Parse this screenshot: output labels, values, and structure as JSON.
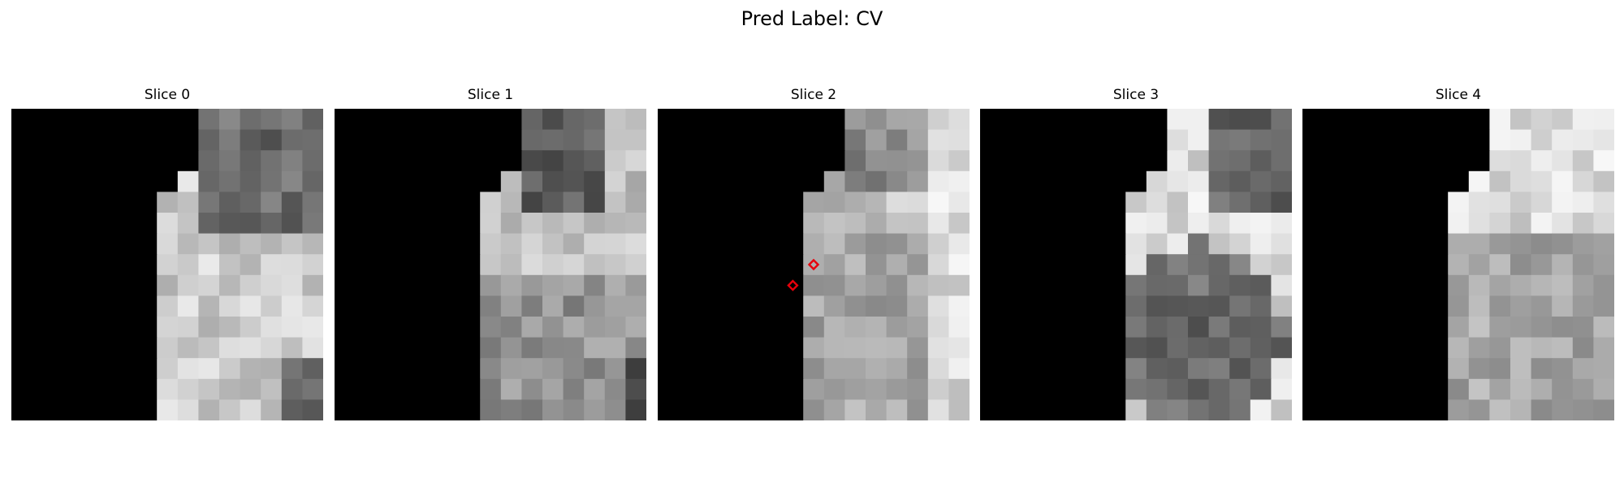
{
  "figure": {
    "title": "Pred Label: CV"
  },
  "panels": [
    {
      "title": "Slice 0",
      "markers": []
    },
    {
      "title": "Slice 1",
      "markers": []
    },
    {
      "title": "Slice 2",
      "markers": [
        {
          "col": 7,
          "row": 7
        },
        {
          "col": 6,
          "row": 8
        }
      ]
    },
    {
      "title": "Slice 3",
      "markers": []
    },
    {
      "title": "Slice 4",
      "markers": []
    }
  ],
  "colors": {
    "mask": "#000000",
    "marker": "#e8000b"
  }
}
